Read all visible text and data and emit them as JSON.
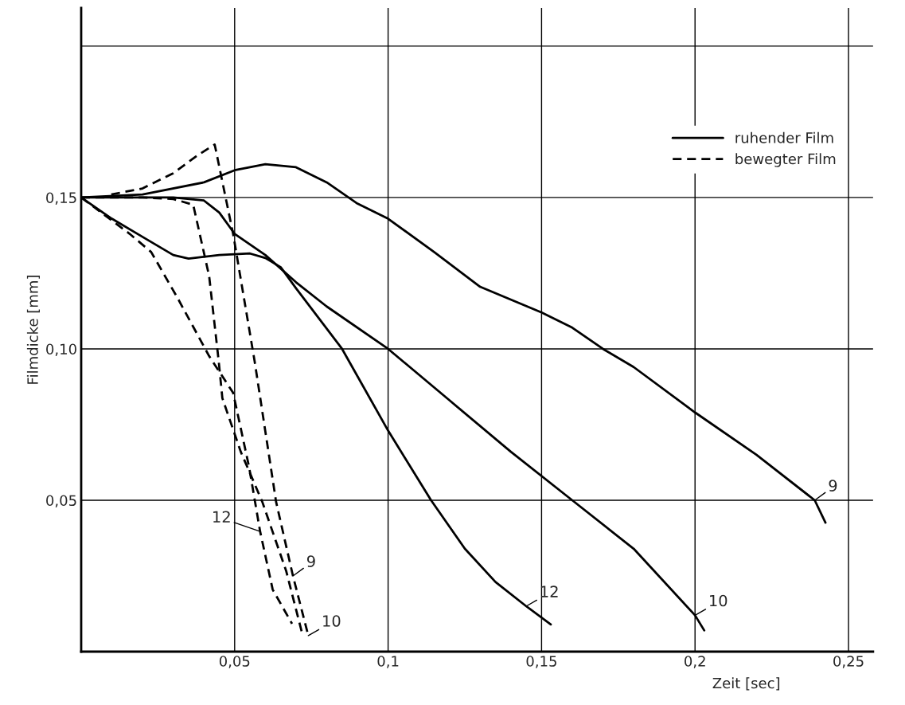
{
  "chart_data": {
    "type": "line",
    "xlabel": "Zeit [sec]",
    "ylabel": "Filmdicke [mm]",
    "xlim": [
      0,
      0.258
    ],
    "ylim": [
      0,
      0.2126
    ],
    "xticks": [
      {
        "value": 0.05,
        "label": "0,05"
      },
      {
        "value": 0.1,
        "label": "0,1"
      },
      {
        "value": 0.15,
        "label": "0,15"
      },
      {
        "value": 0.2,
        "label": "0,2"
      },
      {
        "value": 0.25,
        "label": "0,25"
      }
    ],
    "yticks": [
      {
        "value": 0.05,
        "label": "0,05"
      },
      {
        "value": 0.1,
        "label": "0,10"
      },
      {
        "value": 0.15,
        "label": "0,15"
      },
      {
        "value": 0.2,
        "label": null
      }
    ],
    "grid": true,
    "legend": "right",
    "marker": "none",
    "series": [
      {
        "name": "ruhender Film",
        "color": "#000000",
        "line_style": "solid",
        "x": [
          0,
          0.02,
          0.04,
          0.05,
          0.06,
          0.07,
          0.08,
          0.09,
          0.1,
          0.115,
          0.13,
          0.15,
          0.16,
          0.17,
          0.18,
          0.2,
          0.22,
          0.239,
          0.2425
        ],
        "values": [
          0.15,
          0.151,
          0.155,
          0.159,
          0.161,
          0.16,
          0.155,
          0.148,
          0.143,
          0.132,
          0.1205,
          0.112,
          0.107,
          0.1,
          0.094,
          0.079,
          0.065,
          0.05,
          0.0426
        ]
      },
      {
        "color": "#000000",
        "line_style": "solid",
        "x": [
          0,
          0.03,
          0.04,
          0.045,
          0.05,
          0.06,
          0.07,
          0.08,
          0.1,
          0.12,
          0.14,
          0.16,
          0.18,
          0.2,
          0.203
        ],
        "values": [
          0.15,
          0.15,
          0.149,
          0.145,
          0.138,
          0.131,
          0.122,
          0.114,
          0.1,
          0.083,
          0.066,
          0.05,
          0.034,
          0.012,
          0.007
        ]
      },
      {
        "color": "#000000",
        "line_style": "solid",
        "x": [
          0,
          0.01,
          0.02,
          0.03,
          0.035,
          0.045,
          0.055,
          0.06,
          0.065,
          0.07,
          0.085,
          0.1,
          0.114,
          0.125,
          0.135,
          0.145,
          0.153
        ],
        "values": [
          0.15,
          0.143,
          0.137,
          0.131,
          0.1298,
          0.131,
          0.1315,
          0.13,
          0.127,
          0.12,
          0.1,
          0.073,
          0.05,
          0.034,
          0.023,
          0.015,
          0.009
        ]
      },
      {
        "name": "bewegter Film",
        "color": "#000000",
        "line_style": "dashed",
        "x": [
          0.0098,
          0.02,
          0.03,
          0.038,
          0.0435,
          0.0495,
          0.0565,
          0.0635,
          0.069,
          0.074
        ],
        "values": [
          0.151,
          0.153,
          0.158,
          0.164,
          0.1675,
          0.138,
          0.096,
          0.0495,
          0.025,
          0.0053
        ]
      },
      {
        "color": "#000000",
        "line_style": "dashed",
        "x": [
          0,
          0.02,
          0.03,
          0.0365,
          0.0417,
          0.0448,
          0.046,
          0.052,
          0.059,
          0.0668,
          0.072
        ],
        "values": [
          0.15,
          0.15,
          0.1495,
          0.1476,
          0.124,
          0.096,
          0.0837,
          0.066,
          0.0495,
          0.0266,
          0.006
        ]
      },
      {
        "color": "#000000",
        "line_style": "dashed",
        "x": [
          0,
          0.0158,
          0.0228,
          0.0313,
          0.0417,
          0.0495,
          0.0547,
          0.0583,
          0.0624,
          0.0687
        ],
        "values": [
          0.15,
          0.138,
          0.132,
          0.117,
          0.0976,
          0.0855,
          0.061,
          0.0397,
          0.0205,
          0.0092
        ]
      }
    ],
    "annotations": [
      {
        "text": "9",
        "x": 0.239,
        "y": 0.05
      },
      {
        "text": "10",
        "x": 0.2,
        "y": 0.012
      },
      {
        "text": "12",
        "x": 0.145,
        "y": 0.015
      },
      {
        "text": "9",
        "x": 0.069,
        "y": 0.025
      },
      {
        "text": "12",
        "x": 0.0583,
        "y": 0.0397
      },
      {
        "text": "10",
        "x": 0.074,
        "y": 0.0053
      }
    ]
  }
}
